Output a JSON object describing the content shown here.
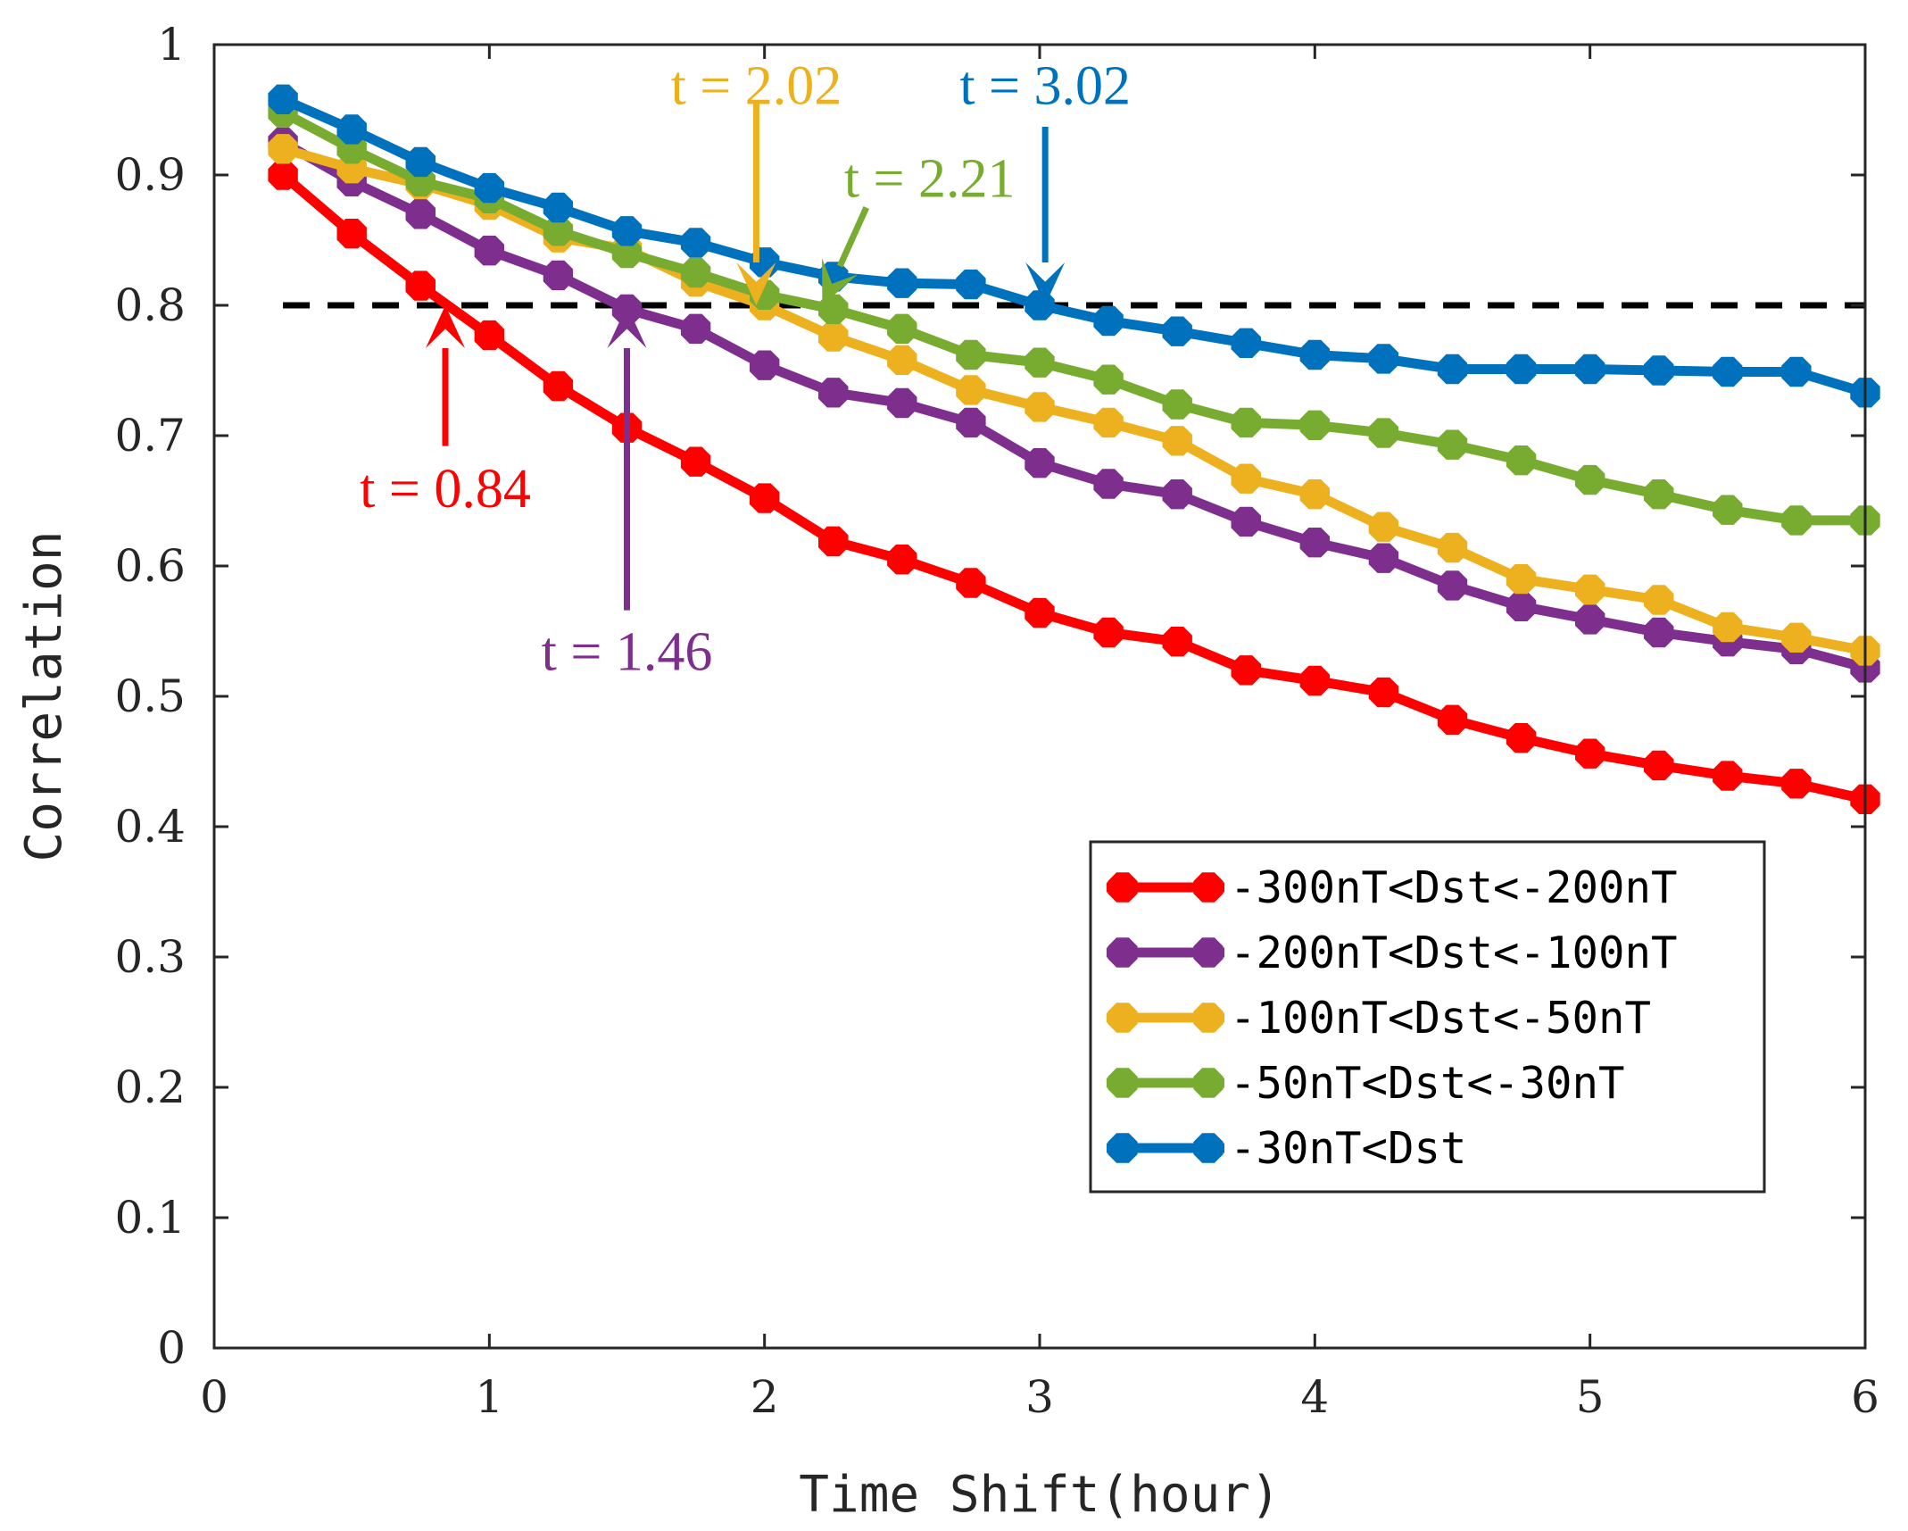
{
  "chart_data": {
    "type": "line",
    "title": "",
    "xlabel": "Time Shift(hour)",
    "ylabel": "Correlation",
    "xlim": [
      0,
      6
    ],
    "ylim": [
      0,
      1
    ],
    "xticks": [
      0,
      1,
      2,
      3,
      4,
      5,
      6
    ],
    "xtick_labels": [
      "0",
      "1",
      "2",
      "3",
      "4",
      "5",
      "6"
    ],
    "yticks": [
      0,
      0.1,
      0.2,
      0.3,
      0.4,
      0.5,
      0.6,
      0.7,
      0.8,
      0.9,
      1
    ],
    "ytick_labels": [
      "0",
      "0.1",
      "0.2",
      "0.3",
      "0.4",
      "0.5",
      "0.6",
      "0.7",
      "0.8",
      "0.9",
      "1"
    ],
    "grid": false,
    "legend_position": "lower-right",
    "threshold": {
      "y": 0.8,
      "x_range": [
        0.25,
        6
      ],
      "color": "#000000",
      "style": "dashed"
    },
    "x": [
      0.25,
      0.5,
      0.75,
      1.0,
      1.25,
      1.5,
      1.75,
      2.0,
      2.25,
      2.5,
      2.75,
      3.0,
      3.25,
      3.5,
      3.75,
      4.0,
      4.25,
      4.5,
      4.75,
      5.0,
      5.25,
      5.5,
      5.75,
      6.0
    ],
    "series": [
      {
        "name": "-300nT<Dst<-200nT",
        "color": "#ff0000",
        "values": [
          0.9,
          0.855,
          0.815,
          0.777,
          0.738,
          0.706,
          0.68,
          0.652,
          0.619,
          0.605,
          0.587,
          0.564,
          0.549,
          0.542,
          0.52,
          0.512,
          0.503,
          0.482,
          0.468,
          0.456,
          0.447,
          0.439,
          0.433,
          0.421
        ]
      },
      {
        "name": "-200nT<Dst<-100nT",
        "color": "#7e2f8e",
        "values": [
          0.925,
          0.895,
          0.87,
          0.842,
          0.823,
          0.797,
          0.782,
          0.754,
          0.733,
          0.725,
          0.71,
          0.679,
          0.663,
          0.655,
          0.634,
          0.618,
          0.606,
          0.585,
          0.569,
          0.559,
          0.549,
          0.542,
          0.536,
          0.522
        ]
      },
      {
        "name": "-100nT<Dst<-50nT",
        "color": "#edb120",
        "values": [
          0.92,
          0.905,
          0.893,
          0.877,
          0.852,
          0.843,
          0.818,
          0.8,
          0.776,
          0.758,
          0.735,
          0.722,
          0.71,
          0.696,
          0.667,
          0.655,
          0.63,
          0.614,
          0.59,
          0.582,
          0.574,
          0.553,
          0.545,
          0.535
        ]
      },
      {
        "name": "-50nT<Dst<-30nT",
        "color": "#77ac30",
        "values": [
          0.948,
          0.92,
          0.895,
          0.882,
          0.857,
          0.84,
          0.825,
          0.808,
          0.797,
          0.782,
          0.762,
          0.756,
          0.743,
          0.724,
          0.71,
          0.708,
          0.702,
          0.693,
          0.681,
          0.666,
          0.655,
          0.643,
          0.635,
          0.635
        ]
      },
      {
        "name": "-30nT<Dst",
        "color": "#0072bd",
        "values": [
          0.958,
          0.935,
          0.91,
          0.89,
          0.875,
          0.857,
          0.848,
          0.833,
          0.822,
          0.817,
          0.816,
          0.8,
          0.788,
          0.78,
          0.771,
          0.762,
          0.759,
          0.751,
          0.751,
          0.751,
          0.75,
          0.749,
          0.749,
          0.733
        ]
      }
    ],
    "annotations": [
      {
        "text": "t = 0.84",
        "color": "#ff0000",
        "x": 0.84,
        "y": 0.8,
        "arrow_tail_y": 0.692,
        "arrow_dir": "up",
        "label_x": 0.84,
        "label_y": 0.659,
        "anchor": "middle"
      },
      {
        "text": "t = 1.46",
        "color": "#7e2f8e",
        "x": 1.5,
        "y": 0.8,
        "arrow_tail_y": 0.566,
        "arrow_dir": "up",
        "label_x": 1.5,
        "label_y": 0.534,
        "anchor": "middle"
      },
      {
        "text": "t = 2.02",
        "color": "#edb120",
        "x": 1.97,
        "y": 0.8,
        "arrow_tail_y": 0.957,
        "arrow_dir": "down",
        "label_x": 1.97,
        "label_y": 0.968,
        "anchor": "middle"
      },
      {
        "text": "t = 2.21",
        "color": "#77ac30",
        "x": 2.21,
        "y": 0.8,
        "arrow_tail_y": 0.875,
        "arrow_tail_x": 2.37,
        "arrow_dir": "diag",
        "label_x": 2.6,
        "label_y": 0.897,
        "anchor": "middle"
      },
      {
        "text": "t = 3.02",
        "color": "#0072bd",
        "x": 3.02,
        "y": 0.8,
        "arrow_tail_y": 0.937,
        "arrow_dir": "down",
        "label_x": 3.02,
        "label_y": 0.968,
        "anchor": "middle"
      }
    ]
  }
}
